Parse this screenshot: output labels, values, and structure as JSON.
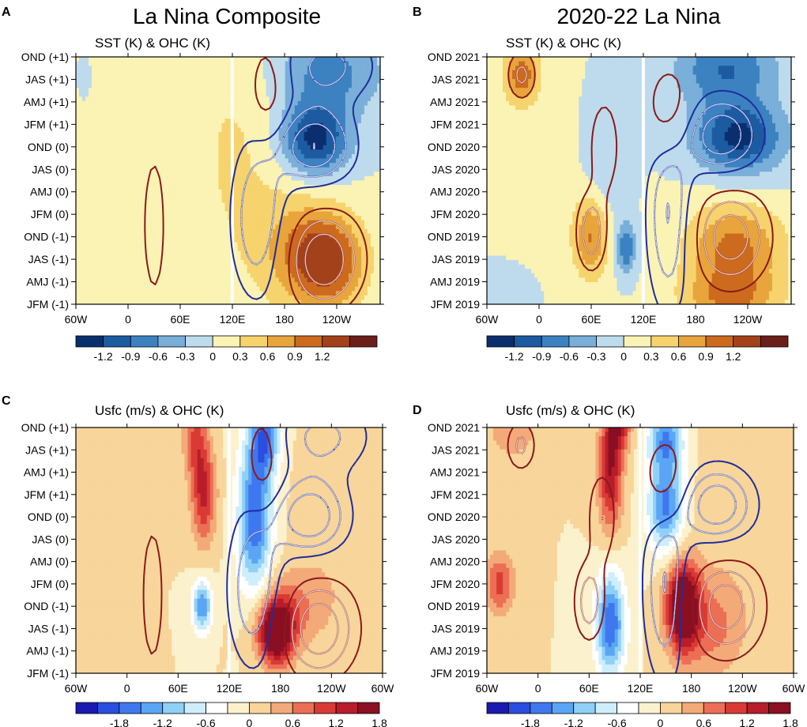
{
  "figure": {
    "column_titles": [
      "La Nina Composite",
      "2020-22 La Nina"
    ]
  },
  "colors": {
    "sst_ohc": [
      "#0b2f6e",
      "#1d5ba1",
      "#3c82c1",
      "#79afd8",
      "#bddbed",
      "#fbf3b4",
      "#f6d36d",
      "#e8a53c",
      "#cc6a1e",
      "#a3421a",
      "#6b1f1a"
    ],
    "usfc": [
      "#1a1ab0",
      "#2a4ee0",
      "#3f78ee",
      "#5aa6f5",
      "#8fd0f7",
      "#cfeefb",
      "#ffffff",
      "#fbf1cc",
      "#f8d59a",
      "#f3aa78",
      "#ec6f55",
      "#da3a34",
      "#b81d2a",
      "#8a0f22"
    ],
    "contour_positive_dark": "#8b1a1a",
    "contour_positive_light": "#ffffff",
    "contour_negative": "#1f2d9e"
  },
  "chart_data": [
    {
      "panel": "A",
      "type": "heatmap",
      "title": "SST (K) & OHC (K)",
      "x_ticks": [
        "60W",
        "0",
        "60E",
        "120E",
        "180",
        "120W"
      ],
      "x_tick_lons": [
        -60,
        0,
        60,
        120,
        180,
        240
      ],
      "xlim": [
        -60,
        290
      ],
      "y_ticks": [
        "JFM (-1)",
        "AMJ (-1)",
        "JAS (-1)",
        "OND (-1)",
        "JFM (0)",
        "AMJ (0)",
        "JAS (0)",
        "OND (0)",
        "JFM (+1)",
        "AMJ (+1)",
        "JAS (+1)",
        "OND (+1)"
      ],
      "colorbar": {
        "levels": [
          -1.5,
          -1.2,
          -0.9,
          -0.6,
          -0.3,
          0,
          0.3,
          0.6,
          0.9,
          1.2,
          1.5
        ],
        "labels": [
          "-1.2",
          "-0.9",
          "-0.6",
          "-0.3",
          "0",
          "0.3",
          "0.6",
          "0.9",
          "1.2"
        ],
        "palette": "sst_ohc"
      },
      "features": [
        {
          "lon": 230,
          "t": 1.9,
          "sx": 30,
          "st": 1.5,
          "amp": 1.3
        },
        {
          "lon": 190,
          "t": 2.5,
          "sx": 30,
          "st": 1.8,
          "amp": 0.5
        },
        {
          "lon": 215,
          "t": 7.3,
          "sx": 27,
          "st": 1.1,
          "amp": -1.35
        },
        {
          "lon": 230,
          "t": 10.3,
          "sx": 45,
          "st": 1.4,
          "amp": -0.75
        },
        {
          "lon": 130,
          "t": 6.5,
          "sx": 35,
          "st": 4.5,
          "amp": 0.2
        },
        {
          "lon": 40,
          "t": 7.0,
          "sx": 110,
          "st": 7.0,
          "amp": 0.18
        },
        {
          "lon": -30,
          "t": 5.5,
          "sx": 20,
          "st": 1.2,
          "amp": 0.15
        },
        {
          "lon": -50,
          "t": 10.0,
          "sx": 12,
          "st": 1.5,
          "amp": -0.15
        }
      ]
    },
    {
      "panel": "B",
      "type": "heatmap",
      "title": "SST (K) & OHC (K)",
      "x_ticks": [
        "60W",
        "0",
        "60E",
        "120E",
        "180",
        "120W"
      ],
      "x_tick_lons": [
        -60,
        0,
        60,
        120,
        180,
        240
      ],
      "xlim": [
        -60,
        290
      ],
      "y_ticks": [
        "JFM 2019",
        "AMJ 2019",
        "JAS 2019",
        "OND 2019",
        "JFM 2020",
        "AMJ 2020",
        "JAS 2020",
        "OND 2020",
        "JFM 2021",
        "AMJ 2021",
        "JAS 2021",
        "OND 2021"
      ],
      "colorbar": {
        "levels": [
          -1.5,
          -1.2,
          -0.9,
          -0.6,
          -0.3,
          0,
          0.3,
          0.6,
          0.9,
          1.2,
          1.5
        ],
        "labels": [
          "-1.2",
          "-0.9",
          "-0.6",
          "-0.3",
          "0",
          "0.3",
          "0.6",
          "0.9",
          "1.2"
        ],
        "palette": "sst_ohc"
      },
      "features": [
        {
          "lon": 225,
          "t": 2.5,
          "sx": 40,
          "st": 1.4,
          "amp": 1.0
        },
        {
          "lon": 220,
          "t": 0.2,
          "sx": 40,
          "st": 0.9,
          "amp": 0.8
        },
        {
          "lon": 230,
          "t": 7.4,
          "sx": 35,
          "st": 1.1,
          "amp": -1.3
        },
        {
          "lon": 215,
          "t": 10.5,
          "sx": 40,
          "st": 1.2,
          "amp": -0.9
        },
        {
          "lon": -20,
          "t": 10.2,
          "sx": 14,
          "st": 0.9,
          "amp": 1.1
        },
        {
          "lon": 60,
          "t": 3.0,
          "sx": 14,
          "st": 1.3,
          "amp": 0.9
        },
        {
          "lon": 100,
          "t": 2.5,
          "sx": 8,
          "st": 0.8,
          "amp": -0.9
        },
        {
          "lon": 75,
          "t": 6.0,
          "sx": 20,
          "st": 2.0,
          "amp": -0.3
        },
        {
          "lon": 0,
          "t": 4.5,
          "sx": 60,
          "st": 3.0,
          "amp": 0.15
        },
        {
          "lon": -40,
          "t": 0.5,
          "sx": 25,
          "st": 1.0,
          "amp": -0.3
        }
      ]
    },
    {
      "panel": "C",
      "type": "heatmap",
      "title": "Usfc (m/s) & OHC (K)",
      "x_ticks": [
        "60W",
        "0",
        "60E",
        "120E",
        "180",
        "120W",
        "60W"
      ],
      "x_tick_lons": [
        -60,
        0,
        60,
        120,
        180,
        240,
        300
      ],
      "xlim": [
        -60,
        300
      ],
      "y_ticks": [
        "JFM (-1)",
        "AMJ (-1)",
        "JAS (-1)",
        "OND (-1)",
        "JFM (0)",
        "AMJ (0)",
        "JAS (0)",
        "OND (0)",
        "JFM (+1)",
        "AMJ (+1)",
        "JAS (+1)",
        "OND (+1)"
      ],
      "colorbar": {
        "levels": [
          -2.4,
          -2.1,
          -1.8,
          -1.5,
          -1.2,
          -0.9,
          -0.6,
          -0.3,
          0,
          0.3,
          0.6,
          0.9,
          1.2,
          1.5,
          1.8,
          2.1,
          2.4
        ],
        "labels": [
          "-1.8",
          "-1.2",
          "-0.6",
          "0",
          "0.6",
          "1.2",
          "1.8"
        ],
        "palette": "usfc"
      },
      "features": [
        {
          "lon": 175,
          "t": 1.8,
          "sx": 15,
          "st": 1.0,
          "amp": 2.2
        },
        {
          "lon": 195,
          "t": 3.0,
          "sx": 30,
          "st": 1.2,
          "amp": 0.6
        },
        {
          "lon": 150,
          "t": 7.0,
          "sx": 14,
          "st": 2.4,
          "amp": -1.8
        },
        {
          "lon": 162,
          "t": 10.6,
          "sx": 12,
          "st": 1.2,
          "amp": -1.5
        },
        {
          "lon": 90,
          "t": 8.0,
          "sx": 10,
          "st": 1.5,
          "amp": 1.3
        },
        {
          "lon": 80,
          "t": 10.5,
          "sx": 10,
          "st": 1.2,
          "amp": 0.9
        },
        {
          "lon": 88,
          "t": 3.0,
          "sx": 8,
          "st": 0.8,
          "amp": -1.5
        },
        {
          "lon": 240,
          "t": 6.0,
          "sx": 30,
          "st": 3.0,
          "amp": 0.2
        },
        {
          "lon": -40,
          "t": 1.5,
          "sx": 20,
          "st": 1.0,
          "amp": 0.3
        },
        {
          "lon": -40,
          "t": 10.0,
          "sx": 15,
          "st": 1.5,
          "amp": 0.3
        }
      ]
    },
    {
      "panel": "D",
      "type": "heatmap",
      "title": "Usfc (m/s) & OHC (K)",
      "x_ticks": [
        "60W",
        "0",
        "60E",
        "120E",
        "180",
        "120W",
        "60W"
      ],
      "x_tick_lons": [
        -60,
        0,
        60,
        120,
        180,
        240,
        300
      ],
      "xlim": [
        -60,
        300
      ],
      "y_ticks": [
        "JFM 2019",
        "AMJ 2019",
        "JAS 2019",
        "OND 2019",
        "JFM 2020",
        "AMJ 2020",
        "JAS 2020",
        "OND 2020",
        "JFM 2021",
        "AMJ 2021",
        "JAS 2021",
        "OND 2021"
      ],
      "colorbar": {
        "levels": [
          -2.4,
          -2.1,
          -1.8,
          -1.5,
          -1.2,
          -0.9,
          -0.6,
          -0.3,
          0,
          0.3,
          0.6,
          0.9,
          1.2,
          1.5,
          1.8,
          2.1,
          2.4
        ],
        "labels": [
          "-1.8",
          "-1.2",
          "-0.6",
          "0",
          "0.6",
          "1.2",
          "1.8"
        ],
        "palette": "usfc"
      },
      "features": [
        {
          "lon": 170,
          "t": 3.0,
          "sx": 14,
          "st": 1.4,
          "amp": 2.2
        },
        {
          "lon": 205,
          "t": 2.0,
          "sx": 25,
          "st": 1.5,
          "amp": 0.6
        },
        {
          "lon": 85,
          "t": 2.2,
          "sx": 12,
          "st": 1.6,
          "amp": -1.8
        },
        {
          "lon": 150,
          "t": 7.5,
          "sx": 15,
          "st": 1.5,
          "amp": -1.6
        },
        {
          "lon": 150,
          "t": 10.5,
          "sx": 15,
          "st": 1.0,
          "amp": -1.4
        },
        {
          "lon": 85,
          "t": 9.0,
          "sx": 10,
          "st": 1.8,
          "amp": 1.5
        },
        {
          "lon": 95,
          "t": 11.2,
          "sx": 10,
          "st": 0.9,
          "amp": 1.2
        },
        {
          "lon": -45,
          "t": 4.0,
          "sx": 12,
          "st": 1.0,
          "amp": 1.0
        },
        {
          "lon": -30,
          "t": 11.0,
          "sx": 20,
          "st": 1.0,
          "amp": 0.6
        },
        {
          "lon": 230,
          "t": 6.0,
          "sx": 40,
          "st": 4.0,
          "amp": 0.2
        }
      ]
    }
  ],
  "ohc_contours": [
    {
      "panel": "A",
      "ohc_features": [
        {
          "lon": 225,
          "t": 2.0,
          "sx": 30,
          "st": 1.5,
          "amp": 1.6
        },
        {
          "lon": 215,
          "t": 7.0,
          "sx": 30,
          "st": 1.2,
          "amp": -1.6
        },
        {
          "lon": 150,
          "t": 3.8,
          "sx": 22,
          "st": 2.5,
          "amp": -1.2
        },
        {
          "lon": 160,
          "t": 9.6,
          "sx": 14,
          "st": 1.5,
          "amp": 0.9
        },
        {
          "lon": 30,
          "t": 3.5,
          "sx": 10,
          "st": 2.5,
          "amp": 0.7
        },
        {
          "lon": 230,
          "t": 10.6,
          "sx": 40,
          "st": 1.2,
          "amp": -0.9
        }
      ]
    },
    {
      "panel": "B",
      "ohc_features": [
        {
          "lon": 220,
          "t": 3.0,
          "sx": 30,
          "st": 1.5,
          "amp": 1.5
        },
        {
          "lon": 210,
          "t": 7.5,
          "sx": 30,
          "st": 1.2,
          "amp": -1.6
        },
        {
          "lon": 150,
          "t": 4.0,
          "sx": 18,
          "st": 3.0,
          "amp": -1.3
        },
        {
          "lon": 150,
          "t": 8.5,
          "sx": 18,
          "st": 1.5,
          "amp": 1.1
        },
        {
          "lon": 60,
          "t": 3.2,
          "sx": 12,
          "st": 1.2,
          "amp": 1.1
        },
        {
          "lon": -20,
          "t": 10.2,
          "sx": 12,
          "st": 0.8,
          "amp": 0.9
        },
        {
          "lon": 75,
          "t": 7.0,
          "sx": 12,
          "st": 1.5,
          "amp": 0.8
        }
      ]
    },
    {
      "panel": "C",
      "ohc_features": [
        {
          "lon": 225,
          "t": 2.0,
          "sx": 30,
          "st": 1.5,
          "amp": 1.6
        },
        {
          "lon": 215,
          "t": 7.0,
          "sx": 30,
          "st": 1.2,
          "amp": -1.6
        },
        {
          "lon": 150,
          "t": 3.8,
          "sx": 22,
          "st": 2.5,
          "amp": -1.2
        },
        {
          "lon": 160,
          "t": 9.6,
          "sx": 14,
          "st": 1.5,
          "amp": 0.9
        },
        {
          "lon": 30,
          "t": 3.5,
          "sx": 10,
          "st": 2.5,
          "amp": 0.7
        },
        {
          "lon": 230,
          "t": 10.6,
          "sx": 40,
          "st": 1.2,
          "amp": -0.9
        }
      ]
    },
    {
      "panel": "D",
      "ohc_features": [
        {
          "lon": 220,
          "t": 3.0,
          "sx": 30,
          "st": 1.5,
          "amp": 1.5
        },
        {
          "lon": 210,
          "t": 7.5,
          "sx": 30,
          "st": 1.2,
          "amp": -1.6
        },
        {
          "lon": 150,
          "t": 4.0,
          "sx": 18,
          "st": 3.0,
          "amp": -1.3
        },
        {
          "lon": 150,
          "t": 8.5,
          "sx": 18,
          "st": 1.5,
          "amp": 1.1
        },
        {
          "lon": 60,
          "t": 3.2,
          "sx": 12,
          "st": 1.2,
          "amp": 1.1
        },
        {
          "lon": -20,
          "t": 10.2,
          "sx": 12,
          "st": 0.8,
          "amp": 0.9
        },
        {
          "lon": 75,
          "t": 7.0,
          "sx": 12,
          "st": 1.5,
          "amp": 0.8
        }
      ]
    }
  ],
  "ohc_levels": [
    -1.6,
    -1.2,
    -0.8,
    -0.4,
    0.4,
    0.8,
    1.2,
    1.6
  ]
}
